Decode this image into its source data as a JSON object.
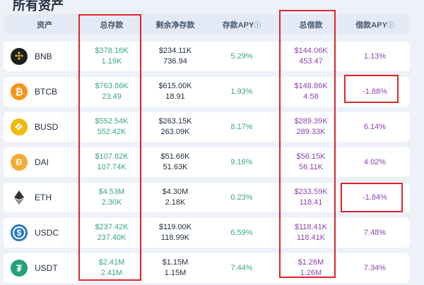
{
  "page_title": "所有资产",
  "headers": {
    "asset": "资产",
    "total_supply": "总存款",
    "remaining_supply": "剩余净存款",
    "supply_apy": "存款APY",
    "total_borrow": "总借款",
    "borrow_apy": "借款APY",
    "info_glyph": "ⓘ"
  },
  "rows": [
    {
      "symbol": "BNB",
      "icon": "bnb-icon",
      "color": "#1f1f1f",
      "supply_usd": "$378.16K",
      "supply_amt": "1.19K",
      "remain_usd": "$234.11K",
      "remain_amt": "736.94",
      "supply_apy": "5.29%",
      "borrow_usd": "$144.06K",
      "borrow_amt": "453.47",
      "borrow_apy": "1.13%"
    },
    {
      "symbol": "BTCB",
      "icon": "btcb-icon",
      "color": "#f7931a",
      "supply_usd": "$763.86K",
      "supply_amt": "23.49",
      "remain_usd": "$615.00K",
      "remain_amt": "18.91",
      "supply_apy": "1.93%",
      "borrow_usd": "$148.86K",
      "borrow_amt": "4.58",
      "borrow_apy": "-1.88%"
    },
    {
      "symbol": "BUSD",
      "icon": "busd-icon",
      "color": "#f0b90b",
      "supply_usd": "$552.54K",
      "supply_amt": "552.42K",
      "remain_usd": "$263.15K",
      "remain_amt": "263.09K",
      "supply_apy": "8.17%",
      "borrow_usd": "$289.39K",
      "borrow_amt": "289.33K",
      "borrow_apy": "6.14%"
    },
    {
      "symbol": "DAI",
      "icon": "dai-icon",
      "color": "#f5ac37",
      "supply_usd": "$107.82K",
      "supply_amt": "107.74K",
      "remain_usd": "$51.66K",
      "remain_amt": "51.63K",
      "supply_apy": "9.16%",
      "borrow_usd": "$56.15K",
      "borrow_amt": "56.11K",
      "borrow_apy": "4.02%"
    },
    {
      "symbol": "ETH",
      "icon": "eth-icon",
      "color": "#ffffff",
      "supply_usd": "$4.53M",
      "supply_amt": "2.30K",
      "remain_usd": "$4.30M",
      "remain_amt": "2.18K",
      "supply_apy": "0.23%",
      "borrow_usd": "$233.59K",
      "borrow_amt": "118.41",
      "borrow_apy": "-1.84%"
    },
    {
      "symbol": "USDC",
      "icon": "usdc-icon",
      "color": "#2775ca",
      "supply_usd": "$237.42K",
      "supply_amt": "237.40K",
      "remain_usd": "$119.00K",
      "remain_amt": "118.99K",
      "supply_apy": "6.59%",
      "borrow_usd": "$118.41K",
      "borrow_amt": "118.41K",
      "borrow_apy": "7.48%"
    },
    {
      "symbol": "USDT",
      "icon": "usdt-icon",
      "color": "#26a17b",
      "supply_usd": "$2.41M",
      "supply_amt": "2.41M",
      "remain_usd": "$1.15M",
      "remain_amt": "1.15M",
      "supply_apy": "7.44%",
      "borrow_usd": "$1.26M",
      "borrow_amt": "1.26M",
      "borrow_apy": "7.34%"
    }
  ],
  "highlight_color": "#e0242b"
}
